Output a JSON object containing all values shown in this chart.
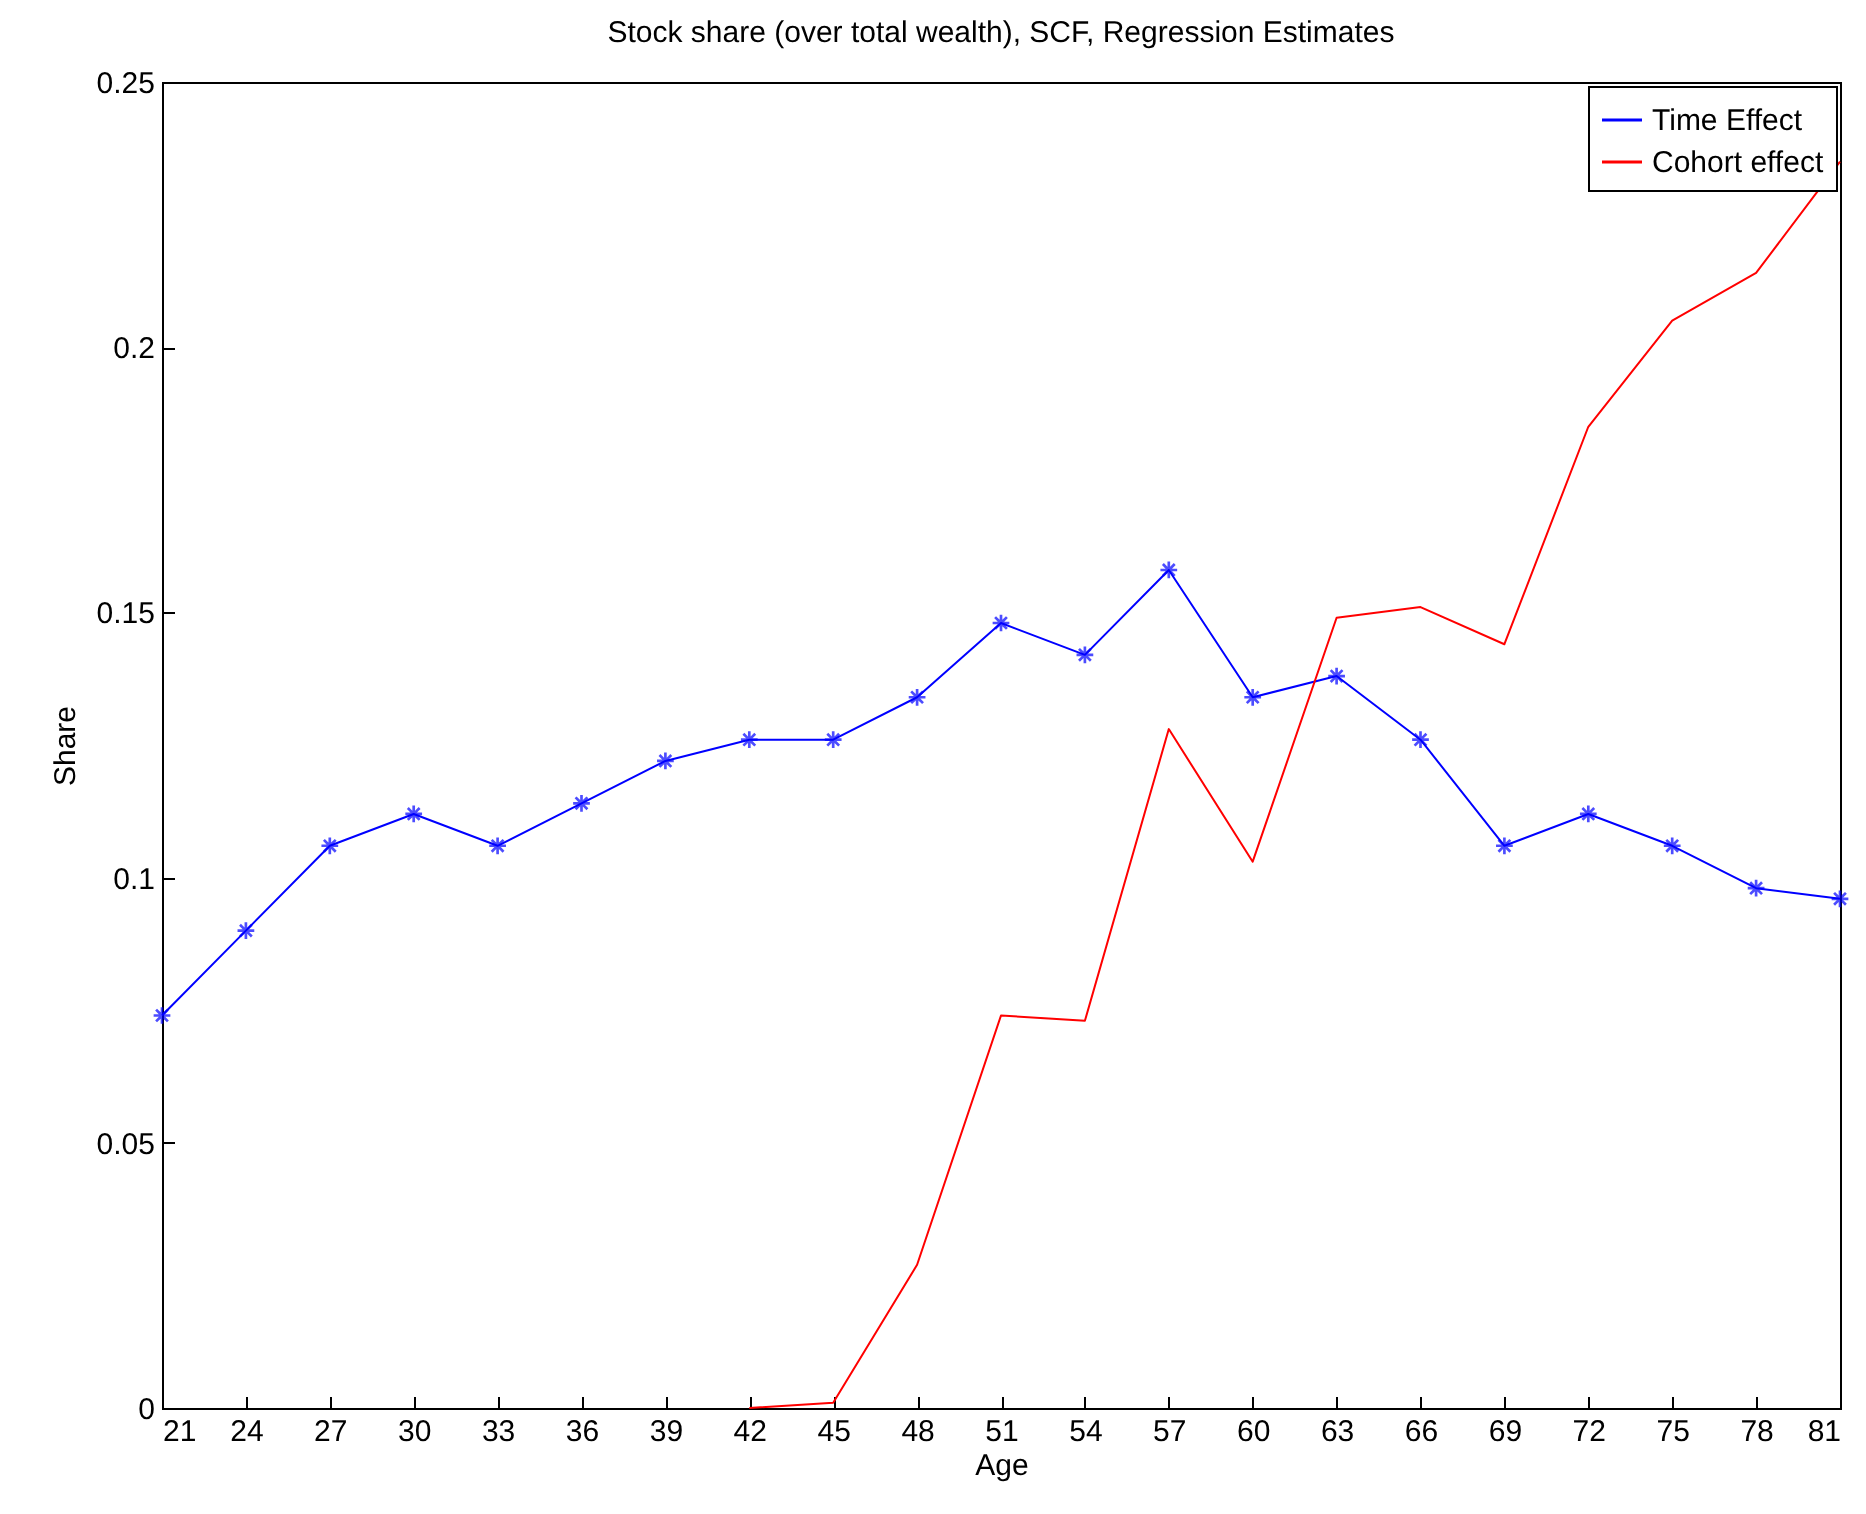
{
  "chart_data": {
    "type": "line",
    "title": "Stock share (over total wealth), SCF, Regression Estimates",
    "xlabel": "Age",
    "ylabel": "Share",
    "x": [
      21,
      24,
      27,
      30,
      33,
      36,
      39,
      42,
      45,
      48,
      51,
      54,
      57,
      60,
      63,
      66,
      69,
      72,
      75,
      78,
      81
    ],
    "xlim": [
      21,
      81
    ],
    "xticks": [
      21,
      24,
      27,
      30,
      33,
      36,
      39,
      42,
      45,
      48,
      51,
      54,
      57,
      60,
      63,
      66,
      69,
      72,
      75,
      78,
      81
    ],
    "ylim": [
      0,
      0.25
    ],
    "yticks": [
      0,
      0.05,
      0.1,
      0.15,
      0.2,
      0.25
    ],
    "grid": false,
    "legend": "top right",
    "series": [
      {
        "name": "Time Effect",
        "color": "#0000ff",
        "marker": "star",
        "values": [
          0.074,
          0.09,
          0.106,
          0.112,
          0.106,
          0.114,
          0.122,
          0.126,
          0.126,
          0.134,
          0.148,
          0.142,
          0.158,
          0.134,
          0.138,
          0.126,
          0.106,
          0.112,
          0.106,
          0.098,
          0.096
        ]
      },
      {
        "name": "Cohort effect",
        "color": "#ff0000",
        "marker": "none",
        "values": [
          null,
          null,
          null,
          null,
          null,
          null,
          null,
          0,
          0.001,
          0.027,
          0.074,
          0.073,
          0.128,
          0.103,
          0.149,
          0.151,
          0.144,
          0.185,
          0.205,
          0.214,
          0.235
        ]
      }
    ]
  }
}
